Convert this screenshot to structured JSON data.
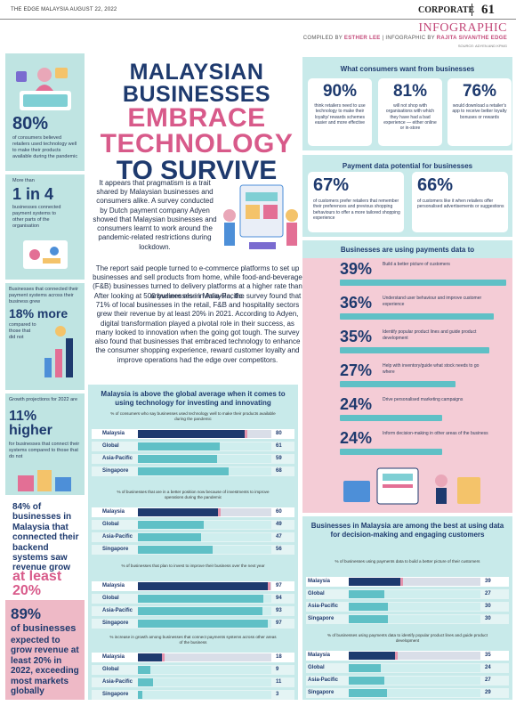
{
  "header": {
    "publication": "THE EDGE MALAYSIA AUGUST 22, 2022",
    "section": "CORPORATE",
    "page_number": "61",
    "label": "INFOGRAPHIC",
    "compiled_prefix": "COMPILED BY",
    "compiled_by": "ESTHER LEE",
    "infographic_prefix": "| INFOGRAPHIC BY",
    "infographic_by": "RAJITA SIVAN/THE EDGE",
    "source_note": "SOURCE: ADYEN AND KPMG"
  },
  "headline": {
    "line1": "MALAYSIAN BUSINESSES",
    "line2": "EMBRACE TECHNOLOGY",
    "line3": "TO SURVIVE"
  },
  "article": {
    "p1": "It appears that pragmatism is a trait shared by Malaysian businesses and consumers alike. A survey conducted by Dutch payment company Adyen showed that Malaysian businesses and consumers learnt to work around the pandemic-related restrictions during lockdown.",
    "p2": "The report said people turned to e-commerce platforms to set up businesses and sell products from home, while food-and-beverage (F&B) businesses turned to delivery platforms at a higher rate than anywhere else in Asia-Pacific.",
    "p3": "After looking at 500 businesses in Malaysia, the survey found that 71% of local businesses in the retail, F&B and hospitality sectors grew their revenue by at least 20% in 2021. According to Adyen, digital transformation played a pivotal role in their success, as many looked to innovation when the going got tough. The survey also found that businesses that embraced technology to enhance the consumer shopping experience, reward customer loyalty and improve operations had the edge over competitors."
  },
  "left": {
    "s1": {
      "big": "80%",
      "text": "of consumers believed retailers used technology well to make their products available during the pandemic"
    },
    "s2": {
      "pre": "More than",
      "big": "1 in 4",
      "text": "businesses connected payment systems to other parts of the organisation"
    },
    "s3": {
      "pre": "Businesses that connected their payment systems across their business grew",
      "big": "18% more",
      "text": "compared to those that did not"
    },
    "s4": {
      "pre": "Growth projections for 2022 are",
      "big": "11% higher",
      "text": "for businesses that connect their systems compared to those that do not"
    },
    "s5": {
      "a": "84% of businesses in Malaysia that connected their backend systems saw revenue grow",
      "b": "at least 20%"
    },
    "s6": {
      "a": "89%",
      "b": "of businesses",
      "c": "expected to grow revenue at least 20% in 2022, exceeding most markets globally"
    }
  },
  "consumers": {
    "title": "What consumers want from businesses",
    "stats": [
      {
        "value": "90%",
        "text": "think retailers need to use technology to make their loyalty/ rewards schemes easier and more effective"
      },
      {
        "value": "81%",
        "text": "will not shop with organisations with which they have had a bad experience — either online or in-store"
      },
      {
        "value": "76%",
        "text": "would download a retailer's app to receive better loyalty bonuses or rewards"
      }
    ]
  },
  "payment_potential": {
    "title": "Payment data potential for businesses",
    "stats": [
      {
        "value": "67%",
        "text": "of customers prefer retailers that remember their preferences and previous shopping behaviours to offer a more tailored shopping experience"
      },
      {
        "value": "66%",
        "text": "of customers like it when retailers offer personalised advertisements or suggestions"
      }
    ]
  },
  "payments_use": {
    "title": "Businesses are using payments data to",
    "items": [
      {
        "value": "39%",
        "pct": 39,
        "text": "Build a better picture of customers"
      },
      {
        "value": "36%",
        "pct": 36,
        "text": "Understand user behaviour and improve customer experience"
      },
      {
        "value": "35%",
        "pct": 35,
        "text": "Identify popular product lines and guide product development"
      },
      {
        "value": "27%",
        "pct": 27,
        "text": "Help with inventory/guide what stock needs to go where"
      },
      {
        "value": "24%",
        "pct": 24,
        "text": "Drive personalised marketing campaigns"
      },
      {
        "value": "24%",
        "pct": 24,
        "text": "Inform decision-making in other areas of the business"
      }
    ]
  },
  "colors": {
    "navy": "#1e3a6e",
    "teal": "#5fc0c6",
    "pink": "#e494ad",
    "panel": "#c8eaea"
  },
  "chart_data": [
    {
      "type": "bar",
      "title": "Malaysia is above the global average when it comes to using technology for investing and innovating",
      "subtitle": "% of consumers who say businesses used technology well to make their products available during the pandemic",
      "categories": [
        "Malaysia",
        "Global",
        "Asia-Pacific",
        "Singapore"
      ],
      "values": [
        80,
        61,
        59,
        68
      ],
      "xlim": [
        0,
        100
      ]
    },
    {
      "type": "bar",
      "subtitle": "% of businesses that are in a better position now because of investments to improve operations during the pandemic",
      "categories": [
        "Malaysia",
        "Global",
        "Asia-Pacific",
        "Singapore"
      ],
      "values": [
        60,
        49,
        47,
        56
      ],
      "xlim": [
        0,
        100
      ]
    },
    {
      "type": "bar",
      "subtitle": "% of businesses that plan to invest to improve their business over the next year",
      "categories": [
        "Malaysia",
        "Global",
        "Asia-Pacific",
        "Singapore"
      ],
      "values": [
        97,
        94,
        93,
        97
      ],
      "xlim": [
        0,
        100
      ]
    },
    {
      "type": "bar",
      "subtitle": "% increase in growth among businesses that connect payments systems across other areas of the business",
      "categories": [
        "Malaysia",
        "Global",
        "Asia-Pacific",
        "Singapore"
      ],
      "values": [
        18,
        9,
        11,
        3
      ],
      "xlim": [
        0,
        100
      ]
    },
    {
      "type": "bar",
      "title": "Businesses in Malaysia are among the best at using data for decision-making and engaging customers",
      "subtitle": "% of businesses using payments data to build a better picture of their customers",
      "categories": [
        "Malaysia",
        "Global",
        "Asia-Pacific",
        "Singapore"
      ],
      "values": [
        39,
        27,
        30,
        30
      ],
      "xlim": [
        0,
        100
      ]
    },
    {
      "type": "bar",
      "subtitle": "% of businesses using payments data to identify popular product lines and guide product development",
      "categories": [
        "Malaysia",
        "Global",
        "Asia-Pacific",
        "Singapore"
      ],
      "values": [
        35,
        24,
        27,
        29
      ],
      "xlim": [
        0,
        100
      ]
    }
  ]
}
